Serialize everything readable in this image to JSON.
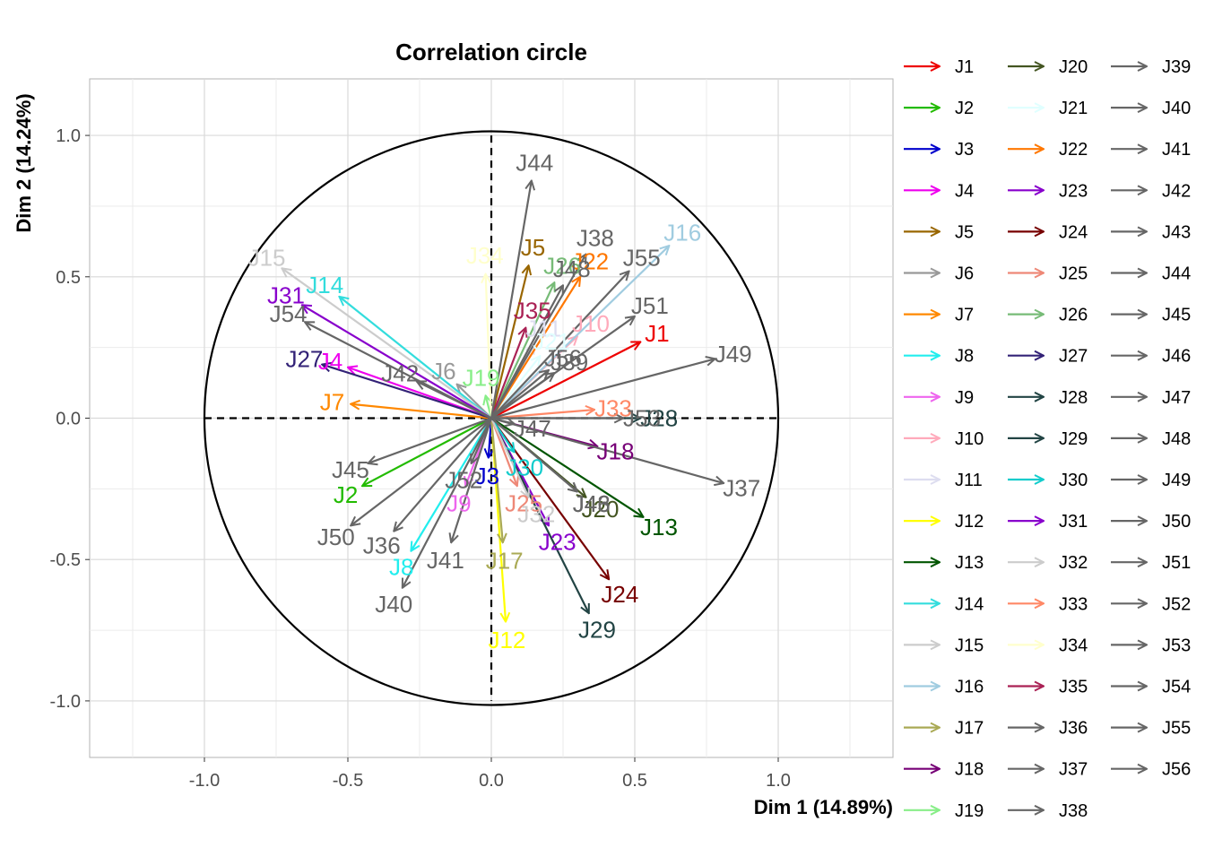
{
  "chart_data": {
    "type": "scatter",
    "subtype": "pca-correlation-circle",
    "title": "Correlation circle",
    "xlabel": "Dim 1 (14.89%)",
    "ylabel": "Dim 2 (14.24%)",
    "xlim": [
      -1.4,
      1.4
    ],
    "ylim": [
      -1.2,
      1.2
    ],
    "xticks": [
      -1.0,
      -0.5,
      0.0,
      0.5,
      1.0
    ],
    "yticks": [
      -1.0,
      -0.5,
      0.0,
      0.5,
      1.0
    ],
    "xtick_labels": [
      "-1.0",
      "-0.5",
      "0.0",
      "0.5",
      "1.0"
    ],
    "ytick_labels": [
      "-1.0",
      "-0.5",
      "0.0",
      "0.5",
      "1.0"
    ],
    "grid": true,
    "unit_circle": true,
    "legend_position": "right",
    "vectors": [
      {
        "name": "J1",
        "x": 0.52,
        "y": 0.27,
        "color": "#ee0000"
      },
      {
        "name": "J2",
        "x": -0.45,
        "y": -0.24,
        "color": "#22bb00"
      },
      {
        "name": "J3",
        "x": -0.01,
        "y": -0.14,
        "color": "#0000cc"
      },
      {
        "name": "J4",
        "x": -0.5,
        "y": 0.18,
        "color": "#ee00ee"
      },
      {
        "name": "J5",
        "x": 0.13,
        "y": 0.54,
        "color": "#996600"
      },
      {
        "name": "J6",
        "x": -0.12,
        "y": 0.12,
        "color": "#999999"
      },
      {
        "name": "J7",
        "x": -0.49,
        "y": 0.05,
        "color": "#ff8800"
      },
      {
        "name": "J8",
        "x": -0.28,
        "y": -0.47,
        "color": "#22eeee"
      },
      {
        "name": "J9",
        "x": -0.09,
        "y": -0.24,
        "color": "#ee66ee"
      },
      {
        "name": "J10",
        "x": 0.3,
        "y": 0.29,
        "color": "#ffaabb"
      },
      {
        "name": "J11",
        "x": 0.15,
        "y": 0.26,
        "color": "#ddddf0"
      },
      {
        "name": "J12",
        "x": 0.05,
        "y": -0.72,
        "color": "#ffff00"
      },
      {
        "name": "J13",
        "x": 0.53,
        "y": -0.35,
        "color": "#005500"
      },
      {
        "name": "J14",
        "x": -0.53,
        "y": 0.43,
        "color": "#33dddd"
      },
      {
        "name": "J15",
        "x": -0.73,
        "y": 0.53,
        "color": "#cccccc"
      },
      {
        "name": "J16",
        "x": 0.62,
        "y": 0.61,
        "color": "#a0cce0"
      },
      {
        "name": "J17",
        "x": 0.04,
        "y": -0.44,
        "color": "#aaaa55"
      },
      {
        "name": "J18",
        "x": 0.37,
        "y": -0.1,
        "color": "#770077"
      },
      {
        "name": "J19",
        "x": -0.02,
        "y": 0.08,
        "color": "#88ee88"
      },
      {
        "name": "J20",
        "x": 0.33,
        "y": -0.28,
        "color": "#445522"
      },
      {
        "name": "J21",
        "x": 0.17,
        "y": 0.22,
        "color": "#e0ffff"
      },
      {
        "name": "J22",
        "x": 0.31,
        "y": 0.5,
        "color": "#ff7700"
      },
      {
        "name": "J23",
        "x": 0.2,
        "y": -0.38,
        "color": "#8800cc"
      },
      {
        "name": "J24",
        "x": 0.41,
        "y": -0.57,
        "color": "#770000"
      },
      {
        "name": "J25",
        "x": 0.09,
        "y": -0.24,
        "color": "#ee8877"
      },
      {
        "name": "J26",
        "x": 0.22,
        "y": 0.48,
        "color": "#77bb77"
      },
      {
        "name": "J27",
        "x": -0.59,
        "y": 0.19,
        "color": "#332277"
      },
      {
        "name": "J28",
        "x": 0.52,
        "y": 0.0,
        "color": "#224444"
      },
      {
        "name": "J29",
        "x": 0.34,
        "y": -0.69,
        "color": "#224444"
      },
      {
        "name": "J30",
        "x": 0.08,
        "y": -0.12,
        "color": "#11cccc"
      },
      {
        "name": "J31",
        "x": -0.66,
        "y": 0.4,
        "color": "#8800cc"
      },
      {
        "name": "J32",
        "x": 0.13,
        "y": -0.28,
        "color": "#cccccc"
      },
      {
        "name": "J33",
        "x": 0.36,
        "y": 0.03,
        "color": "#ff8866"
      },
      {
        "name": "J34",
        "x": -0.02,
        "y": 0.51,
        "color": "#ffffcc"
      },
      {
        "name": "J35",
        "x": 0.12,
        "y": 0.32,
        "color": "#aa2255"
      },
      {
        "name": "J36",
        "x": -0.34,
        "y": -0.4,
        "color": "#666666"
      },
      {
        "name": "J37",
        "x": 0.81,
        "y": -0.23,
        "color": "#666666"
      },
      {
        "name": "J38",
        "x": 0.33,
        "y": 0.58,
        "color": "#666666"
      },
      {
        "name": "J39",
        "x": 0.22,
        "y": 0.16,
        "color": "#666666"
      },
      {
        "name": "J40",
        "x": -0.31,
        "y": -0.6,
        "color": "#666666"
      },
      {
        "name": "J41",
        "x": -0.14,
        "y": -0.44,
        "color": "#666666"
      },
      {
        "name": "J42",
        "x": -0.26,
        "y": 0.13,
        "color": "#666666"
      },
      {
        "name": "J43",
        "x": 0.3,
        "y": -0.26,
        "color": "#666666"
      },
      {
        "name": "J44",
        "x": 0.14,
        "y": 0.84,
        "color": "#666666"
      },
      {
        "name": "J45",
        "x": -0.43,
        "y": -0.16,
        "color": "#666666"
      },
      {
        "name": "J46",
        "x": 0.3,
        "y": -0.26,
        "color": "#666666"
      },
      {
        "name": "J47",
        "x": 0.08,
        "y": -0.02,
        "color": "#666666"
      },
      {
        "name": "J48",
        "x": 0.25,
        "y": 0.47,
        "color": "#666666"
      },
      {
        "name": "J49",
        "x": 0.78,
        "y": 0.21,
        "color": "#666666"
      },
      {
        "name": "J50",
        "x": -0.49,
        "y": -0.38,
        "color": "#666666"
      },
      {
        "name": "J51",
        "x": 0.5,
        "y": 0.36,
        "color": "#666666"
      },
      {
        "name": "J52",
        "x": -0.07,
        "y": -0.16,
        "color": "#666666"
      },
      {
        "name": "J53",
        "x": 0.46,
        "y": 0.0,
        "color": "#666666"
      },
      {
        "name": "J54",
        "x": -0.65,
        "y": 0.34,
        "color": "#666666"
      },
      {
        "name": "J55",
        "x": 0.48,
        "y": 0.52,
        "color": "#666666"
      },
      {
        "name": "J56",
        "x": 0.2,
        "y": 0.17,
        "color": "#666666"
      }
    ]
  }
}
